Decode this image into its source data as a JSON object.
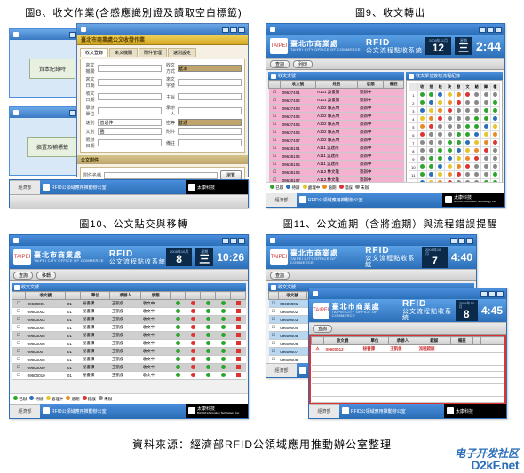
{
  "captions": {
    "f8": "圖8、收文作業(含感應識別證及讀取空白標籤)",
    "f9": "圖9、收文轉出",
    "f10": "圖10、公文點交與移轉",
    "f11": "圖11、公文逾期（含將逾期）與流程錯誤提醒"
  },
  "footer": "資料來源：經濟部RFID公領域應用推動辦公室整理",
  "watermark": {
    "line1": "电子开发社区",
    "line2": "D2kF.net"
  },
  "org": {
    "name": "臺北市商業處",
    "sub": "TAIPEI CITY OFFICE OF COMMERCE",
    "logo": "TAIPEI"
  },
  "system": {
    "rfid": "RFID",
    "title": "公文流程點收系統"
  },
  "clocks": {
    "f9": {
      "dlabel": "2008年11月",
      "day": "12",
      "weekday": "三",
      "time": "2:44"
    },
    "f10": {
      "dlabel": "2008年10月",
      "day": "8",
      "weekday": "三",
      "time": "10:26"
    },
    "f11a": {
      "dlabel": "2008年10月",
      "day": "7",
      "weekday": "二",
      "time": "4:40"
    },
    "f11b": {
      "dlabel": "2008年10月",
      "day": "8",
      "weekday": "三",
      "time": "4:45"
    }
  },
  "bottombar": {
    "left": "經濟部",
    "mid": "RFID公領域應用推動辦公室",
    "right_brand1": "太康科技",
    "right_brand2": "BICOM Information Technology, Inc."
  },
  "fig8": {
    "smallA": "資本紀錄時",
    "smallB": "擴置及補標籤",
    "formTitle": "臺北市商業處公文收發作業",
    "tabs": [
      "收文登錄",
      "來文機關",
      "附件管理",
      "速別設定"
    ],
    "fields": [
      [
        "來文機關",
        "",
        "收文方式",
        "紙本"
      ],
      [
        "來文日期",
        "",
        "來文字號",
        ""
      ],
      [
        "收文日期",
        "",
        "主旨",
        ""
      ],
      [
        "承辦單位",
        "",
        "承辦人",
        ""
      ],
      [
        "速別",
        "普通件",
        "密等",
        "普通"
      ],
      [
        "文別",
        "函",
        "附件",
        ""
      ],
      [
        "限辦日期",
        "",
        "備註",
        ""
      ]
    ],
    "section": "公文附件",
    "attachRow": [
      "附件名稱",
      "",
      "瀏覽"
    ],
    "buttons": [
      "確定",
      "清除",
      "離開"
    ]
  },
  "fig9": {
    "leftTitle": "收文文號",
    "rightTitle": "收文單位簽核流程紀錄",
    "leftCols": [
      "",
      "收文號",
      "姓名",
      "狀態",
      "備註"
    ],
    "leftRows": [
      [
        "",
        "09637401",
        "A101 吳俊賢",
        "簽辦中",
        ""
      ],
      [
        "",
        "09637402",
        "A101 吳俊賢",
        "簽辦中",
        ""
      ],
      [
        "",
        "09637403",
        "A102 陳志明",
        "簽辦中",
        ""
      ],
      [
        "",
        "09637404",
        "A102 陳志明",
        "簽辦中",
        ""
      ],
      [
        "",
        "09637405",
        "A102 陳志明",
        "簽辦中",
        ""
      ],
      [
        "",
        "09637406",
        "A102 陳志明",
        "簽辦中",
        ""
      ],
      [
        "",
        "09637407",
        "A102 陳志明",
        "簽辦中",
        ""
      ],
      [
        "",
        "09638101",
        "A111 吳建南",
        "簽辦中",
        ""
      ],
      [
        "",
        "09638104",
        "A111 吳建南",
        "簽辦中",
        ""
      ],
      [
        "",
        "09638105",
        "A111 吳建南",
        "簽辦中",
        ""
      ],
      [
        "",
        "09638106",
        "A112 林文雄",
        "簽辦中",
        ""
      ],
      [
        "",
        "09638107",
        "A112 林文雄",
        "簽辦中",
        ""
      ],
      [
        "",
        "09638108",
        "A112 林文雄",
        "簽辦中",
        ""
      ],
      [
        "",
        "09706909",
        "A112 林文雄",
        "簽辦中",
        ""
      ]
    ],
    "rightCols": [
      "",
      "收",
      "批",
      "核",
      "決",
      "發",
      "文",
      "結",
      "歸",
      "檔"
    ],
    "legend": [
      [
        "g",
        "已辦"
      ],
      [
        "b",
        "待辦"
      ],
      [
        "y",
        "處理中"
      ],
      [
        "o",
        "逾期"
      ],
      [
        "r",
        "錯誤"
      ],
      [
        "gr",
        "未辦"
      ]
    ]
  },
  "fig10": {
    "title": "收文文號",
    "cols": [
      "",
      "收文號",
      "",
      "單位",
      "承辦人",
      "狀態",
      "",
      "",
      "",
      "",
      ""
    ],
    "rows": [
      [
        "gray",
        "09600001",
        "01",
        "秘書課",
        "王凱俊",
        "收文中"
      ],
      [
        "white",
        "09600002",
        "01",
        "秘書課",
        "王凱俊",
        "收文中"
      ],
      [
        "gray",
        "09600003",
        "01",
        "秘書課",
        "王凱俊",
        "收文中"
      ],
      [
        "white",
        "09600004",
        "01",
        "秘書課",
        "王凱俊",
        "收文中"
      ],
      [
        "gray",
        "09600005",
        "01",
        "秘書課",
        "王凱俊",
        "收文中"
      ],
      [
        "white",
        "09600006",
        "01",
        "秘書課",
        "王凱俊",
        "收文中"
      ],
      [
        "gray",
        "09600007",
        "01",
        "秘書課",
        "王凱俊",
        "收文中"
      ],
      [
        "white",
        "09600008",
        "01",
        "秘書課",
        "王凱俊",
        "收文中"
      ],
      [
        "gray",
        "09600009",
        "01",
        "秘書課",
        "王凱俊",
        "收文中"
      ],
      [
        "white",
        "09600010",
        "01",
        "秘書課",
        "王凱俊",
        "收文中"
      ]
    ]
  },
  "fig11": {
    "a": {
      "title": "收文文號",
      "cols": [
        "",
        "收文號",
        "單位",
        "承辦人",
        "限辦",
        "逾期",
        "狀態",
        "備註",
        "",
        "",
        "",
        "",
        ""
      ],
      "rows": [
        [
          "blue",
          "09600001",
          "秘書課",
          "王凱俊",
          "10/09",
          "",
          "辦理中",
          ""
        ],
        [
          "white",
          "09600002",
          "秘書課",
          "王凱俊",
          "10/09",
          "",
          "辦理中",
          ""
        ],
        [
          "blue",
          "09600003",
          "秘書課",
          "王凱俊",
          "10/09",
          "",
          "辦理中",
          ""
        ],
        [
          "white",
          "09600004",
          "秘書課",
          "王凱俊",
          "10/09",
          "",
          "辦理中",
          ""
        ],
        [
          "blue",
          "09600005",
          "秘書課",
          "王凱俊",
          "10/09",
          "",
          "辦理中",
          ""
        ],
        [
          "white",
          "09600006",
          "秘書課",
          "王凱俊",
          "10/09",
          "",
          "辦理中",
          ""
        ],
        [
          "blue",
          "09600007",
          "秘書課",
          "王凱俊",
          "10/09",
          "",
          "辦理中",
          ""
        ],
        [
          "white",
          "09600008",
          "秘書課",
          "王凱俊",
          "10/09",
          "",
          "辦理中",
          ""
        ]
      ]
    },
    "b": {
      "cols": [
        "",
        "收文號",
        "單位",
        "承辦人",
        "錯誤",
        "備註",
        "",
        "",
        "",
        ""
      ],
      "rows": [
        [
          "white",
          "09600012",
          "秘書課",
          "王凱俊",
          "流程錯誤",
          ""
        ]
      ]
    }
  },
  "colors": {
    "blue_dark": "#2b6fb8",
    "blue_light": "#4a8edc",
    "pink": "#f2b2d0",
    "gray_row": "#cfcfcf",
    "blue_row": "#b6d6f2",
    "red": "#d33",
    "green": "#2da52d",
    "yellow": "#e6c52b",
    "orange": "#e88b25"
  }
}
